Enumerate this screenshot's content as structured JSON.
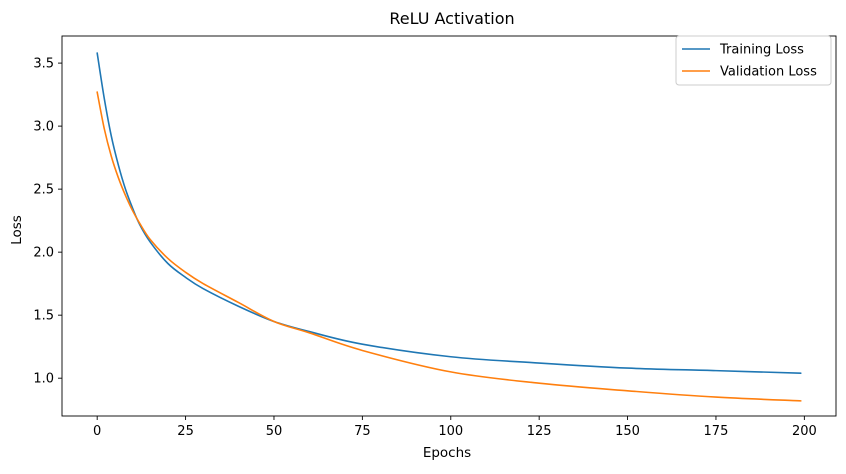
{
  "chart_data": {
    "type": "line",
    "title": "ReLU Activation",
    "xlabel": "Epochs",
    "ylabel": "Loss",
    "xlim": [
      -9.95,
      208.95
    ],
    "ylim": [
      0.7,
      3.715
    ],
    "x_ticks": [
      0,
      25,
      50,
      75,
      100,
      125,
      150,
      175,
      200
    ],
    "x_tick_labels": [
      "0",
      "25",
      "50",
      "75",
      "100",
      "125",
      "150",
      "175",
      "200"
    ],
    "y_ticks": [
      1.0,
      1.5,
      2.0,
      2.5,
      3.0,
      3.5
    ],
    "y_tick_labels": [
      "1.0",
      "1.5",
      "2.0",
      "2.5",
      "3.0",
      "3.5"
    ],
    "grid": false,
    "legend_position": "top-right",
    "series": [
      {
        "name": "Training Loss",
        "color": "#1f77b4",
        "x": [
          0,
          2,
          4,
          6,
          8,
          10,
          12,
          15,
          20,
          25,
          30,
          40,
          50,
          60,
          75,
          100,
          125,
          150,
          175,
          199
        ],
        "y": [
          3.58,
          3.22,
          2.92,
          2.69,
          2.5,
          2.35,
          2.22,
          2.08,
          1.91,
          1.8,
          1.71,
          1.57,
          1.45,
          1.37,
          1.27,
          1.17,
          1.12,
          1.08,
          1.06,
          1.04
        ]
      },
      {
        "name": "Validation Loss",
        "color": "#ff7f0e",
        "x": [
          0,
          2,
          4,
          6,
          8,
          10,
          12,
          15,
          20,
          25,
          30,
          40,
          50,
          60,
          75,
          100,
          125,
          150,
          175,
          199
        ],
        "y": [
          3.27,
          2.98,
          2.76,
          2.59,
          2.45,
          2.33,
          2.23,
          2.1,
          1.95,
          1.84,
          1.75,
          1.6,
          1.45,
          1.36,
          1.22,
          1.05,
          0.96,
          0.9,
          0.85,
          0.82
        ]
      }
    ]
  }
}
